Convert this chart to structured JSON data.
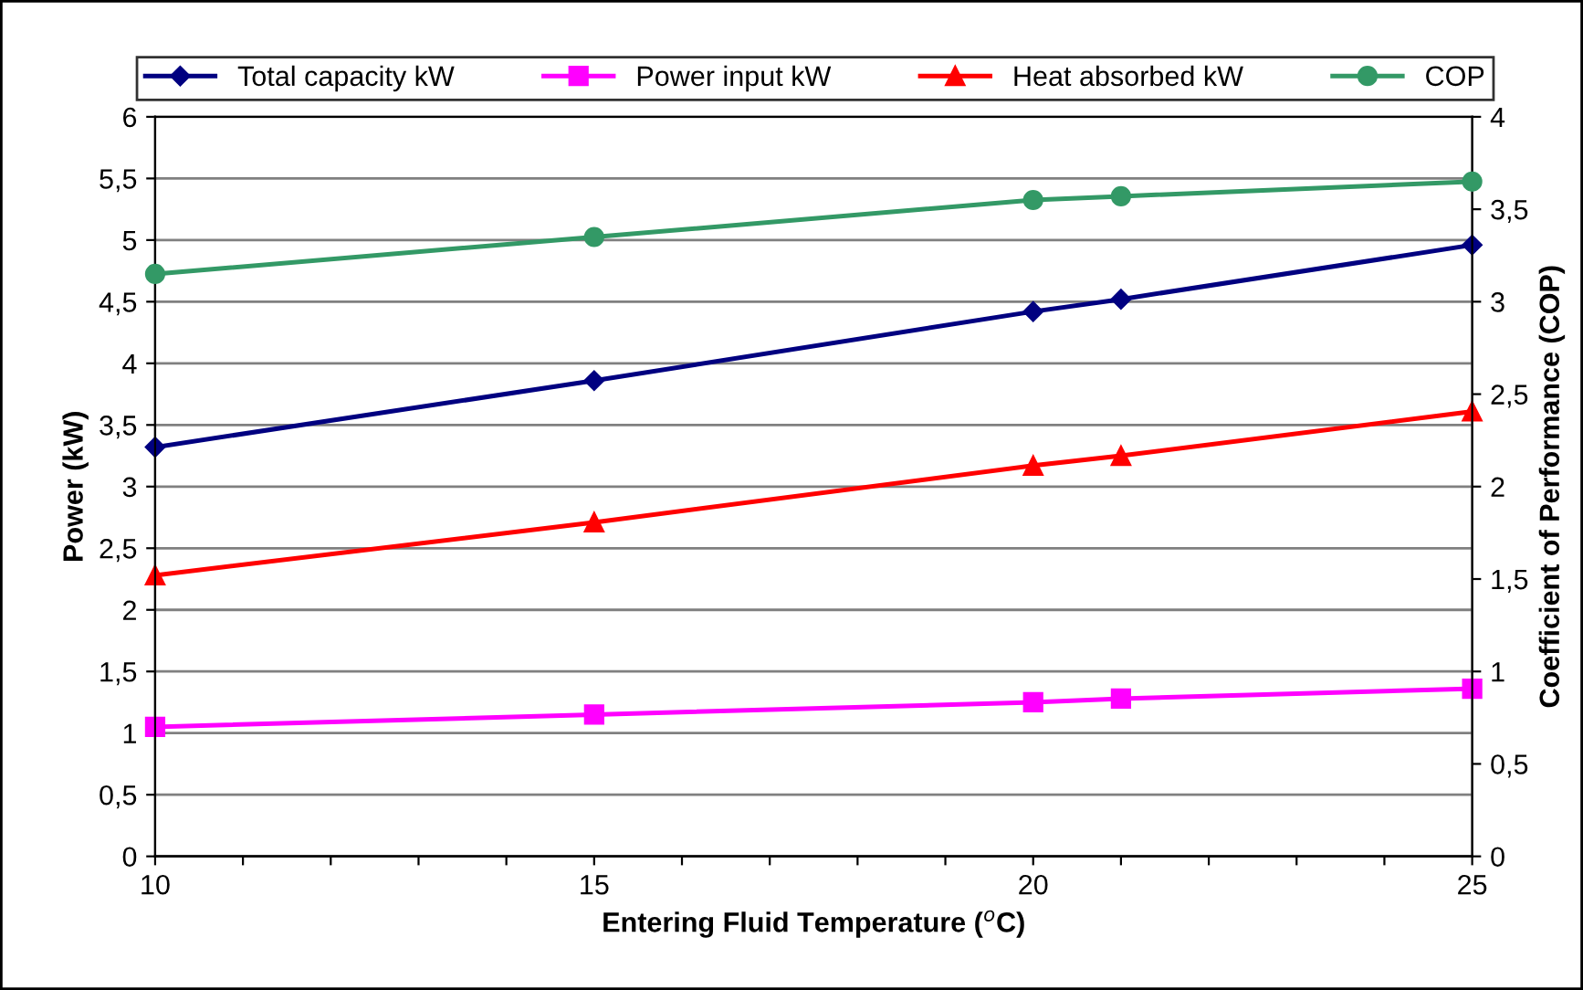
{
  "chart_data": {
    "type": "line",
    "xlabel": "Entering Fluid Temperature ($^{o}$C)",
    "ylabel": "Power (kW)",
    "y2label": "Coefficient of Performance (COP)",
    "x": [
      10,
      15,
      20,
      21,
      25
    ],
    "series": [
      {
        "name": "Total capacity kW",
        "color": "#000080",
        "marker": "diamond",
        "values": [
          3.32,
          3.86,
          4.42,
          4.52,
          4.96
        ]
      },
      {
        "name": "Power input kW",
        "color": "#ff00ff",
        "marker": "square",
        "values": [
          1.05,
          1.15,
          1.25,
          1.28,
          1.36
        ]
      },
      {
        "name": "Heat absorbed kW",
        "color": "#ff0000",
        "marker": "triangle",
        "values": [
          2.28,
          2.71,
          3.17,
          3.25,
          3.61
        ]
      },
      {
        "name": "COP",
        "color": "#339966",
        "marker": "circle",
        "axis": "y2",
        "values": [
          3.15,
          3.35,
          3.55,
          3.57,
          3.65
        ]
      }
    ],
    "xlim": [
      10,
      25
    ],
    "xticks": [
      10,
      {
        "value": 11,
        "label": null
      },
      {
        "value": 12,
        "label": null
      },
      {
        "value": 13,
        "label": null
      },
      {
        "value": 14,
        "label": null
      },
      15,
      {
        "value": 16,
        "label": null
      },
      {
        "value": 17,
        "label": null
      },
      {
        "value": 18,
        "label": null
      },
      {
        "value": 19,
        "label": null
      },
      20,
      {
        "value": 21,
        "label": null
      },
      {
        "value": 22,
        "label": null
      },
      {
        "value": 23,
        "label": null
      },
      {
        "value": 24,
        "label": null
      },
      25
    ],
    "ylim": [
      0,
      6
    ],
    "yticks": [
      0,
      {
        "value": 0.5,
        "label": "0,5"
      },
      1,
      {
        "value": 1.5,
        "label": "1,5"
      },
      2,
      {
        "value": 2.5,
        "label": "2,5"
      },
      3,
      {
        "value": 3.5,
        "label": "3,5"
      },
      4,
      {
        "value": 4.5,
        "label": "4,5"
      },
      5,
      {
        "value": 5.5,
        "label": "5,5"
      },
      6
    ],
    "y2lim": [
      0,
      4
    ],
    "y2ticks": [
      0,
      {
        "value": 0.5,
        "label": "0,5"
      },
      1,
      {
        "value": 1.5,
        "label": "1,5"
      },
      2,
      {
        "value": 2.5,
        "label": "2,5"
      },
      3,
      {
        "value": 3.5,
        "label": "3,5"
      },
      4
    ],
    "grid": "y",
    "legend": "top",
    "line_style": "solid"
  }
}
